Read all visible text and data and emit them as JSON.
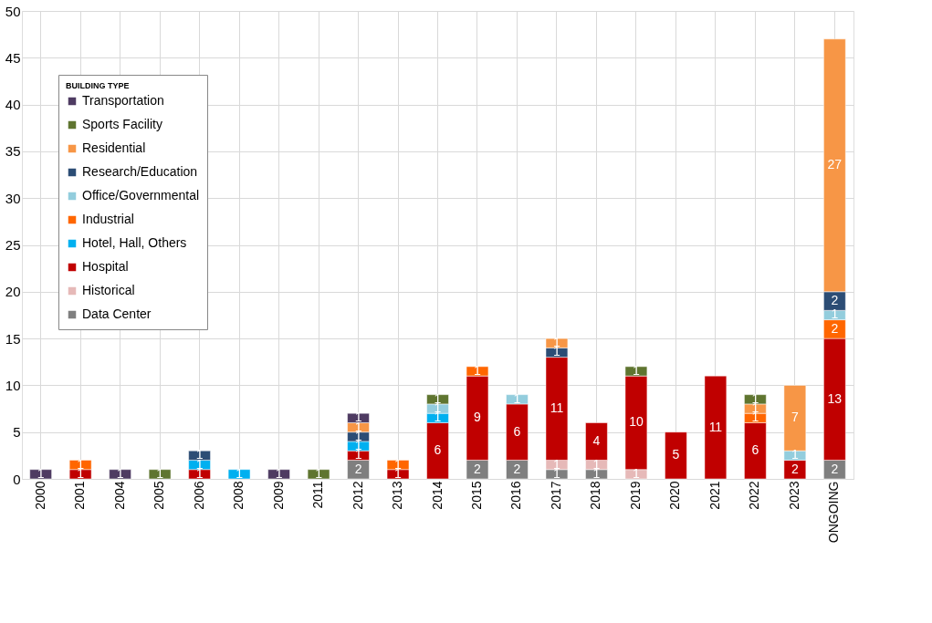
{
  "chart_data": {
    "type": "bar",
    "stacked": true,
    "legend_title": "BUILDING TYPE",
    "categories": [
      "2000",
      "2001",
      "2004",
      "2005",
      "2006",
      "2008",
      "2009",
      "2011",
      "2012",
      "2013",
      "2014",
      "2015",
      "2016",
      "2017",
      "2018",
      "2019",
      "2020",
      "2021",
      "2022",
      "2023",
      "ONGOING"
    ],
    "series": [
      {
        "name": "Data Center",
        "color": "#7f7f7f",
        "values": [
          null,
          null,
          null,
          null,
          null,
          null,
          null,
          null,
          2,
          null,
          null,
          2,
          2,
          1,
          1,
          null,
          null,
          null,
          null,
          null,
          2
        ]
      },
      {
        "name": "Historical",
        "color": "#e6b9b8",
        "values": [
          null,
          null,
          null,
          null,
          null,
          null,
          null,
          null,
          null,
          null,
          null,
          null,
          null,
          1,
          1,
          1,
          null,
          null,
          null,
          null,
          null
        ]
      },
      {
        "name": "Hospital",
        "color": "#c00000",
        "values": [
          null,
          1,
          null,
          null,
          1,
          null,
          null,
          null,
          1,
          1,
          6,
          9,
          6,
          11,
          4,
          10,
          5,
          11,
          6,
          2,
          13
        ]
      },
      {
        "name": "Hotel, Hall, Others",
        "color": "#00b0f0",
        "values": [
          null,
          null,
          null,
          null,
          1,
          1,
          null,
          null,
          1,
          null,
          1,
          null,
          null,
          null,
          null,
          null,
          null,
          null,
          null,
          null,
          null
        ]
      },
      {
        "name": "Industrial",
        "color": "#ff6600",
        "values": [
          null,
          1,
          null,
          null,
          null,
          null,
          null,
          null,
          null,
          1,
          null,
          1,
          null,
          null,
          null,
          null,
          null,
          null,
          1,
          null,
          2
        ]
      },
      {
        "name": "Office/Governmental",
        "color": "#93cddd",
        "values": [
          null,
          null,
          null,
          null,
          null,
          null,
          null,
          null,
          null,
          null,
          1,
          null,
          1,
          null,
          null,
          null,
          null,
          null,
          null,
          1,
          1
        ]
      },
      {
        "name": "Research/Education",
        "color": "#2c4d75",
        "values": [
          null,
          null,
          null,
          null,
          1,
          null,
          null,
          null,
          1,
          null,
          null,
          null,
          null,
          1,
          null,
          null,
          null,
          null,
          null,
          null,
          2
        ]
      },
      {
        "name": "Residential",
        "color": "#f79646",
        "values": [
          null,
          null,
          null,
          null,
          null,
          null,
          null,
          null,
          1,
          null,
          null,
          null,
          null,
          1,
          null,
          null,
          null,
          null,
          1,
          7,
          27
        ]
      },
      {
        "name": "Sports Facility",
        "color": "#5f7530",
        "values": [
          null,
          null,
          null,
          1,
          null,
          null,
          null,
          1,
          null,
          null,
          1,
          null,
          null,
          null,
          null,
          1,
          null,
          null,
          1,
          null,
          null
        ]
      },
      {
        "name": "Transportation",
        "color": "#4e3b62",
        "values": [
          1,
          null,
          1,
          null,
          null,
          null,
          1,
          null,
          1,
          null,
          null,
          null,
          null,
          null,
          null,
          null,
          null,
          null,
          null,
          null,
          null
        ]
      }
    ],
    "ylim": [
      0,
      50
    ],
    "yticks": [
      0,
      5,
      10,
      15,
      20,
      25,
      30,
      35,
      40,
      45,
      50
    ],
    "grid": true,
    "legend": "top left",
    "data_labels": true
  }
}
